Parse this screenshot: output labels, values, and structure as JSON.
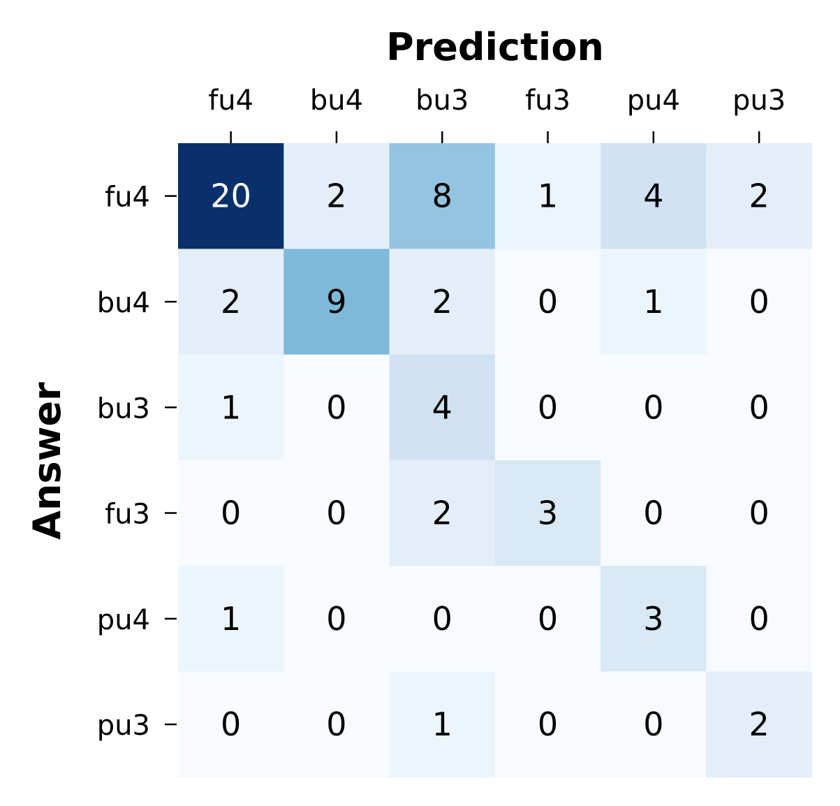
{
  "chart_data": {
    "type": "heatmap",
    "xlabel": "Prediction",
    "ylabel": "Answer",
    "x_categories": [
      "fu4",
      "bu4",
      "bu3",
      "fu3",
      "pu4",
      "pu3"
    ],
    "y_categories": [
      "fu4",
      "bu4",
      "bu3",
      "fu3",
      "pu4",
      "pu3"
    ],
    "values": [
      [
        20,
        2,
        8,
        1,
        4,
        2
      ],
      [
        2,
        9,
        2,
        0,
        1,
        0
      ],
      [
        1,
        0,
        4,
        0,
        0,
        0
      ],
      [
        0,
        0,
        2,
        3,
        0,
        0
      ],
      [
        1,
        0,
        0,
        0,
        3,
        0
      ],
      [
        0,
        0,
        1,
        0,
        0,
        2
      ]
    ],
    "colormap": "Blues",
    "vmin": 0,
    "vmax": 20,
    "x_tick_position": "top",
    "colorbar": false
  }
}
